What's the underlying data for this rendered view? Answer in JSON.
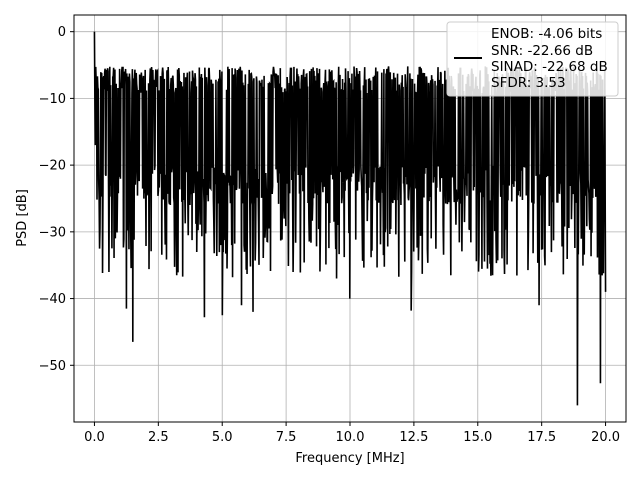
{
  "chart_data": {
    "type": "line",
    "xlabel": "Frequency [MHz]",
    "ylabel": "PSD [dB]",
    "xlim": [
      -0.8,
      20.8
    ],
    "ylim": [
      -58.5,
      2.5
    ],
    "x_ticks": [
      0.0,
      2.5,
      5.0,
      7.5,
      10.0,
      12.5,
      15.0,
      17.5,
      20.0
    ],
    "x_tick_labels": [
      "0.0",
      "2.5",
      "5.0",
      "7.5",
      "10.0",
      "12.5",
      "15.0",
      "17.5",
      "20.0"
    ],
    "y_ticks": [
      0,
      -10,
      -20,
      -30,
      -40,
      -50
    ],
    "y_tick_labels": [
      "0",
      "−10",
      "−20",
      "−30",
      "−40",
      "−50"
    ],
    "grid": true,
    "legend_position": "top-right",
    "line_color": "#000000",
    "legend": [
      "ENOB: -4.06 bits",
      "SNR: -22.66 dB",
      "SINAD: -22.68 dB",
      "SFDR: 3.53"
    ],
    "series": [
      {
        "x_range": [
          0.0,
          20.0
        ],
        "num_points": 1200,
        "peak": {
          "x": 0.0,
          "y": 0.0
        },
        "typical_range": [
          -26,
          -8
        ],
        "deep_minima": [
          {
            "x": 1.5,
            "y": -46.5
          },
          {
            "x": 1.25,
            "y": -41.5
          },
          {
            "x": 4.3,
            "y": -42.8
          },
          {
            "x": 5.0,
            "y": -42.5
          },
          {
            "x": 6.2,
            "y": -42.0
          },
          {
            "x": 5.75,
            "y": -41.0
          },
          {
            "x": 10.0,
            "y": -40.0
          },
          {
            "x": 12.4,
            "y": -41.8
          },
          {
            "x": 17.4,
            "y": -41.0
          },
          {
            "x": 18.9,
            "y": -56.0
          },
          {
            "x": 19.8,
            "y": -52.7
          },
          {
            "x": 20.0,
            "y": -39.0
          }
        ]
      }
    ]
  }
}
